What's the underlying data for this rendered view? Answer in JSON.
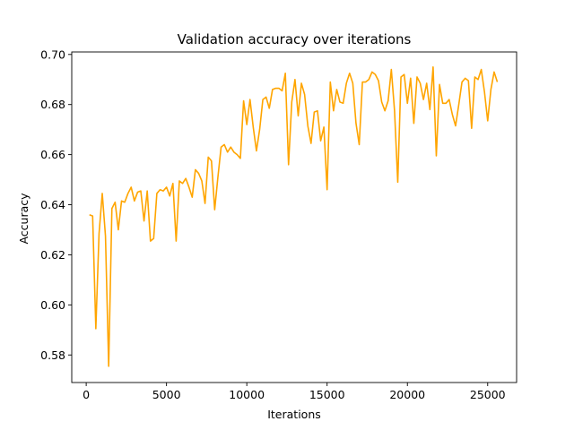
{
  "chart_data": {
    "type": "line",
    "title": "Validation accuracy over iterations",
    "xlabel": "Iterations",
    "ylabel": "Accuracy",
    "xlim": [
      -900,
      26800
    ],
    "ylim": [
      0.569,
      0.701
    ],
    "xticks": [
      0,
      5000,
      10000,
      15000,
      20000,
      25000
    ],
    "xtick_labels": [
      "0",
      "5000",
      "10000",
      "15000",
      "20000",
      "25000"
    ],
    "yticks": [
      0.58,
      0.6,
      0.62,
      0.64,
      0.66,
      0.68,
      0.7
    ],
    "ytick_labels": [
      "0.58",
      "0.60",
      "0.62",
      "0.64",
      "0.66",
      "0.68",
      "0.70"
    ],
    "grid": false,
    "legend": "none",
    "series": [
      {
        "color": "#FFA500",
        "x": [
          200,
          400,
          600,
          800,
          1000,
          1200,
          1400,
          1600,
          1800,
          2000,
          2200,
          2400,
          2600,
          2800,
          3000,
          3200,
          3400,
          3600,
          3800,
          4000,
          4200,
          4400,
          4600,
          4800,
          5000,
          5200,
          5400,
          5600,
          5800,
          6000,
          6200,
          6400,
          6600,
          6800,
          7000,
          7200,
          7400,
          7600,
          7800,
          8000,
          8200,
          8400,
          8600,
          8800,
          9000,
          9200,
          9400,
          9600,
          9800,
          10000,
          10200,
          10400,
          10600,
          10800,
          11000,
          11200,
          11400,
          11600,
          11800,
          12000,
          12200,
          12400,
          12600,
          12800,
          13000,
          13200,
          13400,
          13600,
          13800,
          14000,
          14200,
          14400,
          14600,
          14800,
          15000,
          15200,
          15400,
          15600,
          15800,
          16000,
          16200,
          16400,
          16600,
          16800,
          17000,
          17200,
          17400,
          17600,
          17800,
          18000,
          18200,
          18400,
          18600,
          18800,
          19000,
          19200,
          19400,
          19600,
          19800,
          20000,
          20200,
          20400,
          20600,
          20800,
          21000,
          21200,
          21400,
          21600,
          21800,
          22000,
          22200,
          22400,
          22600,
          22800,
          23000,
          23200,
          23400,
          23600,
          23800,
          24000,
          24200,
          24400,
          24600,
          24800,
          25000,
          25200,
          25400,
          25600
        ],
        "y": [
          0.636,
          0.6355,
          0.5905,
          0.6285,
          0.6445,
          0.6275,
          0.5755,
          0.6385,
          0.641,
          0.63,
          0.6415,
          0.641,
          0.6445,
          0.647,
          0.6415,
          0.645,
          0.6455,
          0.6335,
          0.6455,
          0.6255,
          0.6265,
          0.6445,
          0.646,
          0.6455,
          0.647,
          0.6435,
          0.6485,
          0.6255,
          0.6495,
          0.6485,
          0.6505,
          0.647,
          0.643,
          0.654,
          0.6525,
          0.6495,
          0.6405,
          0.659,
          0.6575,
          0.638,
          0.651,
          0.663,
          0.664,
          0.661,
          0.663,
          0.661,
          0.66,
          0.6585,
          0.6815,
          0.672,
          0.682,
          0.671,
          0.6615,
          0.67,
          0.682,
          0.683,
          0.6785,
          0.686,
          0.6865,
          0.6865,
          0.6855,
          0.6925,
          0.656,
          0.681,
          0.69,
          0.6755,
          0.6885,
          0.684,
          0.6715,
          0.6645,
          0.677,
          0.6775,
          0.6655,
          0.671,
          0.646,
          0.689,
          0.6775,
          0.686,
          0.681,
          0.6805,
          0.6885,
          0.6925,
          0.6885,
          0.6725,
          0.664,
          0.689,
          0.689,
          0.69,
          0.693,
          0.692,
          0.6895,
          0.681,
          0.6775,
          0.6815,
          0.694,
          0.6775,
          0.649,
          0.691,
          0.692,
          0.6805,
          0.6905,
          0.6725,
          0.691,
          0.6885,
          0.682,
          0.6885,
          0.678,
          0.695,
          0.6595,
          0.688,
          0.6805,
          0.6805,
          0.682,
          0.676,
          0.6715,
          0.68,
          0.689,
          0.6905,
          0.6895,
          0.6705,
          0.691,
          0.69,
          0.694,
          0.685,
          0.6735,
          0.686,
          0.693,
          0.689
        ]
      }
    ]
  }
}
